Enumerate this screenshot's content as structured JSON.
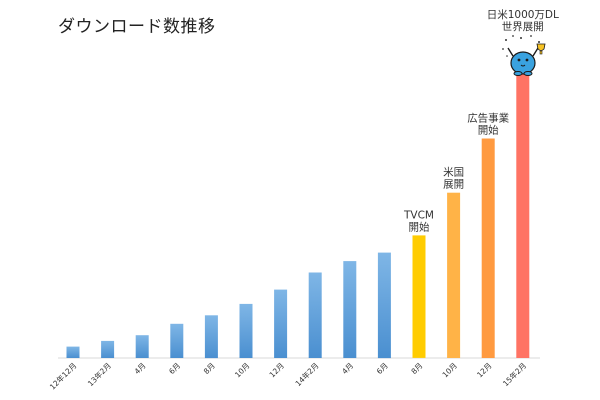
{
  "chart_data": {
    "type": "bar",
    "title": "ダウンロード数推移",
    "categories": [
      "12年12月",
      "13年2月",
      "4月",
      "6月",
      "8月",
      "10月",
      "12月",
      "14年2月",
      "4月",
      "6月",
      "8月",
      "10月",
      "12月",
      "15年2月"
    ],
    "values": [
      4,
      6,
      8,
      12,
      15,
      19,
      24,
      30,
      34,
      37,
      43,
      58,
      77,
      100
    ],
    "colors": [
      "#5b9bd5",
      "#5b9bd5",
      "#5b9bd5",
      "#5b9bd5",
      "#5b9bd5",
      "#5b9bd5",
      "#5b9bd5",
      "#5b9bd5",
      "#5b9bd5",
      "#5b9bd5",
      "#ffcc00",
      "#ffb347",
      "#ff9a40",
      "#ff7364"
    ],
    "annotations": [
      {
        "index": 10,
        "lines": [
          "TVCM",
          "開始"
        ]
      },
      {
        "index": 11,
        "lines": [
          "米国",
          "展開"
        ]
      },
      {
        "index": 12,
        "lines": [
          "広告事業",
          "開始"
        ]
      },
      {
        "index": 13,
        "lines": [
          "日米1000万DL",
          "世界展開"
        ]
      }
    ],
    "ylim": [
      0,
      100
    ],
    "grid": false,
    "mascot_icon": "blue-blob-mascot-holding-trophy-icon"
  }
}
